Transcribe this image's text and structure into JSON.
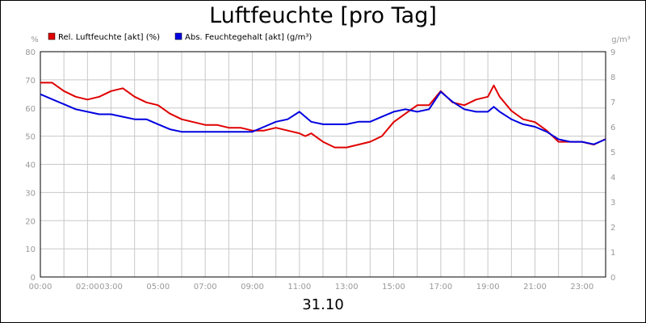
{
  "title": "Luftfeuchte [pro Tag]",
  "date_label": "31.10",
  "colors": {
    "series_rel": "#e00000",
    "series_abs": "#0000e0",
    "grid": "#c8c8c8",
    "axis_text": "#999999"
  },
  "chart_data": {
    "type": "line",
    "title": "Luftfeuchte [pro Tag]",
    "xlabel": "31.10",
    "left_axis": {
      "unit": "%",
      "min": 0,
      "max": 80,
      "ticks": [
        0,
        10,
        20,
        30,
        40,
        50,
        60,
        70,
        80
      ]
    },
    "right_axis": {
      "unit": "g/m³",
      "min": 0,
      "max": 9,
      "ticks": [
        0,
        1,
        2,
        3,
        4,
        5,
        6,
        7,
        8,
        9
      ]
    },
    "x_range_hours": [
      0,
      24
    ],
    "x_tick_labels": [
      {
        "label": "00:00",
        "hour": 0
      },
      {
        "label": "02:00",
        "hour": 2
      },
      {
        "label": "03:00",
        "hour": 3
      },
      {
        "label": "05:00",
        "hour": 5
      },
      {
        "label": "07:00",
        "hour": 7
      },
      {
        "label": "09:00",
        "hour": 9
      },
      {
        "label": "11:00",
        "hour": 11
      },
      {
        "label": "13:00",
        "hour": 13
      },
      {
        "label": "15:00",
        "hour": 15
      },
      {
        "label": "17:00",
        "hour": 17
      },
      {
        "label": "19:00",
        "hour": 19
      },
      {
        "label": "21:00",
        "hour": 21
      },
      {
        "label": "23:00",
        "hour": 23
      }
    ],
    "grid": true,
    "legend_position": "top-left",
    "series": [
      {
        "name": "Rel. Luftfeuchte [akt] (%)",
        "axis": "left",
        "color": "#e00000",
        "points": [
          [
            0,
            69
          ],
          [
            0.5,
            69
          ],
          [
            1,
            66
          ],
          [
            1.5,
            64
          ],
          [
            2,
            63
          ],
          [
            2.5,
            64
          ],
          [
            3,
            66
          ],
          [
            3.5,
            67
          ],
          [
            4,
            64
          ],
          [
            4.5,
            62
          ],
          [
            5,
            61
          ],
          [
            5.5,
            58
          ],
          [
            6,
            56
          ],
          [
            6.5,
            55
          ],
          [
            7,
            54
          ],
          [
            7.5,
            54
          ],
          [
            8,
            53
          ],
          [
            8.5,
            53
          ],
          [
            9,
            52
          ],
          [
            9.5,
            52
          ],
          [
            10,
            53
          ],
          [
            10.5,
            52
          ],
          [
            11,
            51
          ],
          [
            11.25,
            50
          ],
          [
            11.5,
            51
          ],
          [
            12,
            48
          ],
          [
            12.5,
            46
          ],
          [
            13,
            46
          ],
          [
            13.5,
            47
          ],
          [
            14,
            48
          ],
          [
            14.5,
            50
          ],
          [
            15,
            55
          ],
          [
            15.5,
            58
          ],
          [
            16,
            61
          ],
          [
            16.5,
            61
          ],
          [
            17,
            66
          ],
          [
            17.5,
            62
          ],
          [
            18,
            61
          ],
          [
            18.5,
            63
          ],
          [
            19,
            64
          ],
          [
            19.25,
            68
          ],
          [
            19.5,
            64
          ],
          [
            20,
            59
          ],
          [
            20.5,
            56
          ],
          [
            21,
            55
          ],
          [
            21.5,
            52
          ],
          [
            22,
            48
          ],
          [
            22.5,
            48
          ],
          [
            23,
            48
          ],
          [
            23.5,
            47
          ],
          [
            24,
            49
          ]
        ]
      },
      {
        "name": "Abs. Feuchtegehalt [akt] (g/m³)",
        "axis": "right",
        "color": "#0000e0",
        "points": [
          [
            0,
            7.3
          ],
          [
            0.5,
            7.1
          ],
          [
            1,
            6.9
          ],
          [
            1.5,
            6.7
          ],
          [
            2,
            6.6
          ],
          [
            2.5,
            6.5
          ],
          [
            3,
            6.5
          ],
          [
            3.5,
            6.4
          ],
          [
            4,
            6.3
          ],
          [
            4.5,
            6.3
          ],
          [
            5,
            6.1
          ],
          [
            5.5,
            5.9
          ],
          [
            6,
            5.8
          ],
          [
            6.5,
            5.8
          ],
          [
            7,
            5.8
          ],
          [
            7.5,
            5.8
          ],
          [
            8,
            5.8
          ],
          [
            8.5,
            5.8
          ],
          [
            9,
            5.8
          ],
          [
            9.5,
            6.0
          ],
          [
            10,
            6.2
          ],
          [
            10.5,
            6.3
          ],
          [
            11,
            6.6
          ],
          [
            11.5,
            6.2
          ],
          [
            12,
            6.1
          ],
          [
            12.5,
            6.1
          ],
          [
            13,
            6.1
          ],
          [
            13.5,
            6.2
          ],
          [
            14,
            6.2
          ],
          [
            14.5,
            6.4
          ],
          [
            15,
            6.6
          ],
          [
            15.5,
            6.7
          ],
          [
            16,
            6.6
          ],
          [
            16.5,
            6.7
          ],
          [
            17,
            7.4
          ],
          [
            17.5,
            7.0
          ],
          [
            18,
            6.7
          ],
          [
            18.5,
            6.6
          ],
          [
            19,
            6.6
          ],
          [
            19.25,
            6.8
          ],
          [
            19.5,
            6.6
          ],
          [
            20,
            6.3
          ],
          [
            20.5,
            6.1
          ],
          [
            21,
            6.0
          ],
          [
            21.5,
            5.8
          ],
          [
            22,
            5.5
          ],
          [
            22.5,
            5.4
          ],
          [
            23,
            5.4
          ],
          [
            23.5,
            5.3
          ],
          [
            24,
            5.5
          ]
        ]
      }
    ]
  }
}
